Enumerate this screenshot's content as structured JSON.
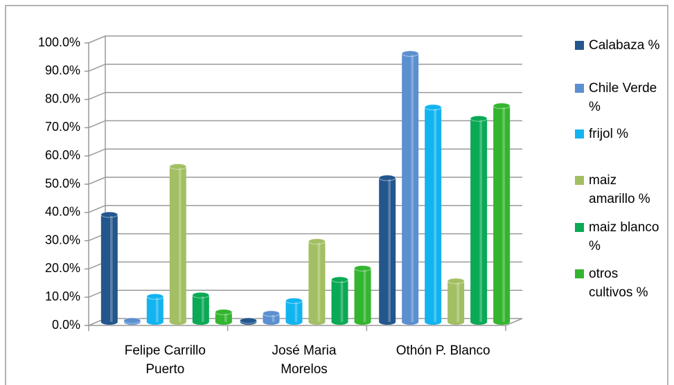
{
  "chart_data": {
    "type": "bar",
    "categories": [
      "Felipe Carrillo Puerto",
      "José Maria Morelos",
      "Othón P. Blanco"
    ],
    "series": [
      {
        "name": "Calabaza %",
        "color": "#23568c",
        "values": [
          38,
          0.5,
          51
        ]
      },
      {
        "name": "Chile Verde %",
        "color": "#5b8fd0",
        "values": [
          0.5,
          3,
          95
        ]
      },
      {
        "name": "frijol %",
        "color": "#12b4f0",
        "values": [
          9,
          7.5,
          76
        ]
      },
      {
        "name": "maiz amarillo %",
        "color": "#a3bf63",
        "values": [
          55,
          28.5,
          14.5
        ]
      },
      {
        "name": "maiz blanco %",
        "color": "#0aa955",
        "values": [
          9.5,
          15,
          72
        ]
      },
      {
        "name": "otros cultivos %",
        "color": "#33b52f",
        "values": [
          3.5,
          19,
          76.5
        ]
      }
    ],
    "ylim": [
      0,
      100
    ],
    "yticks": [
      {
        "value": 0,
        "label": "0.0%"
      },
      {
        "value": 10,
        "label": "10.0%"
      },
      {
        "value": 20,
        "label": "20.0%"
      },
      {
        "value": 30,
        "label": "30.0%"
      },
      {
        "value": 40,
        "label": "40.0%"
      },
      {
        "value": 50,
        "label": "50.0%"
      },
      {
        "value": 60,
        "label": "60.0%"
      },
      {
        "value": 70,
        "label": "70.0%"
      },
      {
        "value": 80,
        "label": "80.0%"
      },
      {
        "value": 90,
        "label": "90.0%"
      },
      {
        "value": 100,
        "label": "100.0%"
      }
    ],
    "grid": true,
    "legend": "right"
  }
}
